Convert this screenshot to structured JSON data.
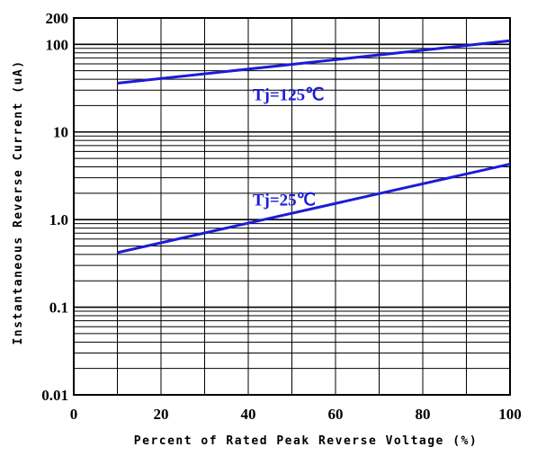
{
  "chart_data": {
    "type": "line",
    "xlabel": "Percent of Rated Peak Reverse Voltage (%)",
    "ylabel": "Instantaneous Reverse Current (uA)",
    "xlim": [
      0,
      100
    ],
    "ylim": [
      0.01,
      200
    ],
    "yscale": "log",
    "grid": true,
    "x_ticks": [
      0,
      20,
      40,
      60,
      80,
      100
    ],
    "x_tick_labels": [
      "0",
      "20",
      "40",
      "60",
      "80",
      "100"
    ],
    "y_ticks": [
      0.01,
      0.1,
      1.0,
      10,
      100,
      200
    ],
    "y_tick_labels": [
      "0.01",
      "0.1",
      "1.0",
      "10",
      "100",
      "200"
    ],
    "series": [
      {
        "x": [
          10,
          100
        ],
        "y": [
          36,
          110
        ]
      },
      {
        "x": [
          10,
          100
        ],
        "y": [
          0.42,
          4.3
        ]
      }
    ],
    "annotations": [
      {
        "text": "Tj=125℃",
        "x": 41,
        "y": 23
      },
      {
        "text": "Tj=25℃",
        "x": 41,
        "y": 1.45
      }
    ],
    "colors": {
      "series": "#1c1cd6",
      "grid": "#000000"
    }
  }
}
